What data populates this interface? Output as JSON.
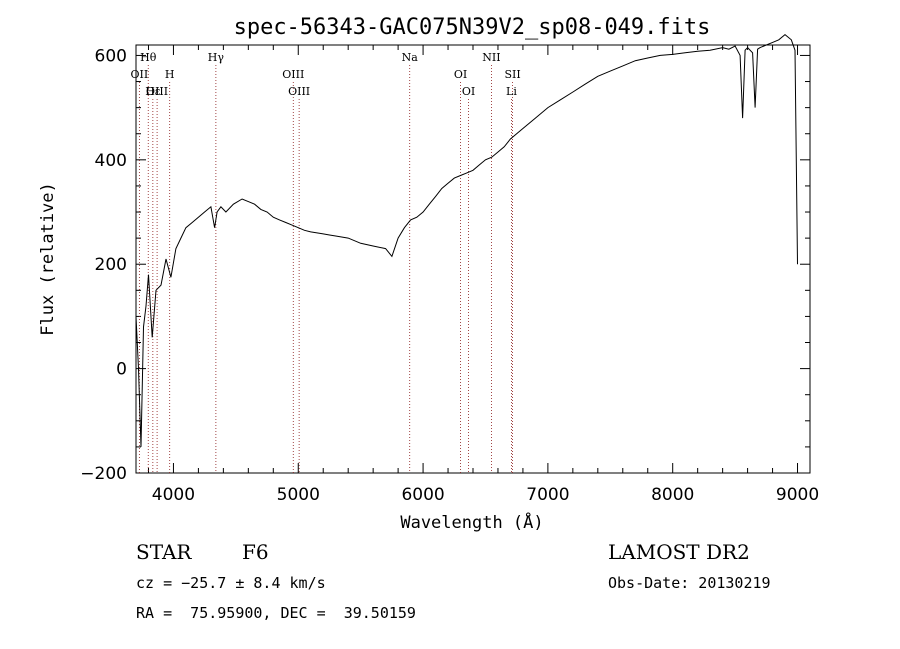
{
  "chart_data": {
    "type": "line",
    "title": "spec-56343-GAC075N39V2_sp08-049.fits",
    "xlabel": "Wavelength (Å)",
    "ylabel": "Flux (relative)",
    "xlim": [
      3700,
      9100
    ],
    "ylim": [
      -200,
      620
    ],
    "xticks": [
      "4000",
      "5000",
      "6000",
      "7000",
      "8000",
      "9000"
    ],
    "yticks": [
      "−200",
      "0",
      "200",
      "400",
      "600"
    ],
    "grid": false,
    "series": [
      {
        "x": [
          3700,
          3720,
          3740,
          3760,
          3780,
          3800,
          3830,
          3860,
          3900,
          3940,
          3980,
          4020,
          4060,
          4100,
          4150,
          4200,
          4250,
          4300,
          4330,
          4350,
          4380,
          4420,
          4480,
          4550,
          4600,
          4650,
          4700,
          4750,
          4800,
          4850,
          4900,
          4950,
          5000,
          5050,
          5100,
          5150,
          5200,
          5250,
          5300,
          5400,
          5500,
          5600,
          5700,
          5750,
          5800,
          5850,
          5900,
          5950,
          6000,
          6050,
          6100,
          6150,
          6200,
          6250,
          6300,
          6350,
          6400,
          6450,
          6500,
          6550,
          6600,
          6650,
          6700,
          6800,
          6900,
          7000,
          7100,
          7200,
          7300,
          7400,
          7500,
          7600,
          7700,
          7800,
          7900,
          8000,
          8100,
          8200,
          8300,
          8400,
          8450,
          8500,
          8540,
          8560,
          8580,
          8600,
          8640,
          8660,
          8680,
          8700,
          8750,
          8800,
          8850,
          8900,
          8950,
          8980,
          9000
        ],
        "y": [
          100,
          0,
          -150,
          80,
          120,
          180,
          60,
          150,
          160,
          210,
          175,
          230,
          250,
          270,
          280,
          290,
          300,
          310,
          270,
          300,
          310,
          300,
          315,
          325,
          320,
          315,
          305,
          300,
          290,
          285,
          280,
          275,
          270,
          265,
          262,
          260,
          258,
          256,
          254,
          250,
          240,
          235,
          230,
          215,
          250,
          270,
          285,
          290,
          300,
          315,
          330,
          345,
          355,
          365,
          370,
          375,
          380,
          390,
          400,
          405,
          415,
          425,
          440,
          460,
          480,
          500,
          515,
          530,
          545,
          560,
          570,
          580,
          590,
          595,
          600,
          602,
          605,
          608,
          610,
          615,
          612,
          618,
          600,
          480,
          610,
          615,
          605,
          500,
          612,
          615,
          620,
          625,
          630,
          640,
          630,
          610,
          200
        ]
      }
    ],
    "line_marks": [
      {
        "label": "Hθ",
        "x": 3798,
        "row": 0
      },
      {
        "label": "OII",
        "x": 3727,
        "row": 1
      },
      {
        "label": "OIII",
        "x": 3869,
        "row": 2
      },
      {
        "label": "H",
        "x": 3970,
        "row": 1
      },
      {
        "label": "Hε",
        "x": 3835,
        "row": 2
      },
      {
        "label": "Hγ",
        "x": 4340,
        "row": 0
      },
      {
        "label": "OIII",
        "x": 4960,
        "row": 1
      },
      {
        "label": "OIII",
        "x": 5007,
        "row": 2
      },
      {
        "label": "Na",
        "x": 5893,
        "row": 0
      },
      {
        "label": "OI",
        "x": 6300,
        "row": 1
      },
      {
        "label": "OI",
        "x": 6364,
        "row": 2
      },
      {
        "label": "NII",
        "x": 6548,
        "row": 0
      },
      {
        "label": "SII",
        "x": 6717,
        "row": 1
      },
      {
        "label": "Li",
        "x": 6708,
        "row": 2
      }
    ]
  },
  "info": {
    "object_class": "STAR",
    "subclass": "F6",
    "cz": "cz = −25.7 ± 8.4 km/s",
    "coords": "RA =  75.95900, DEC =  39.50159",
    "survey": "LAMOST DR2",
    "obs_date": "Obs-Date: 20130219"
  }
}
